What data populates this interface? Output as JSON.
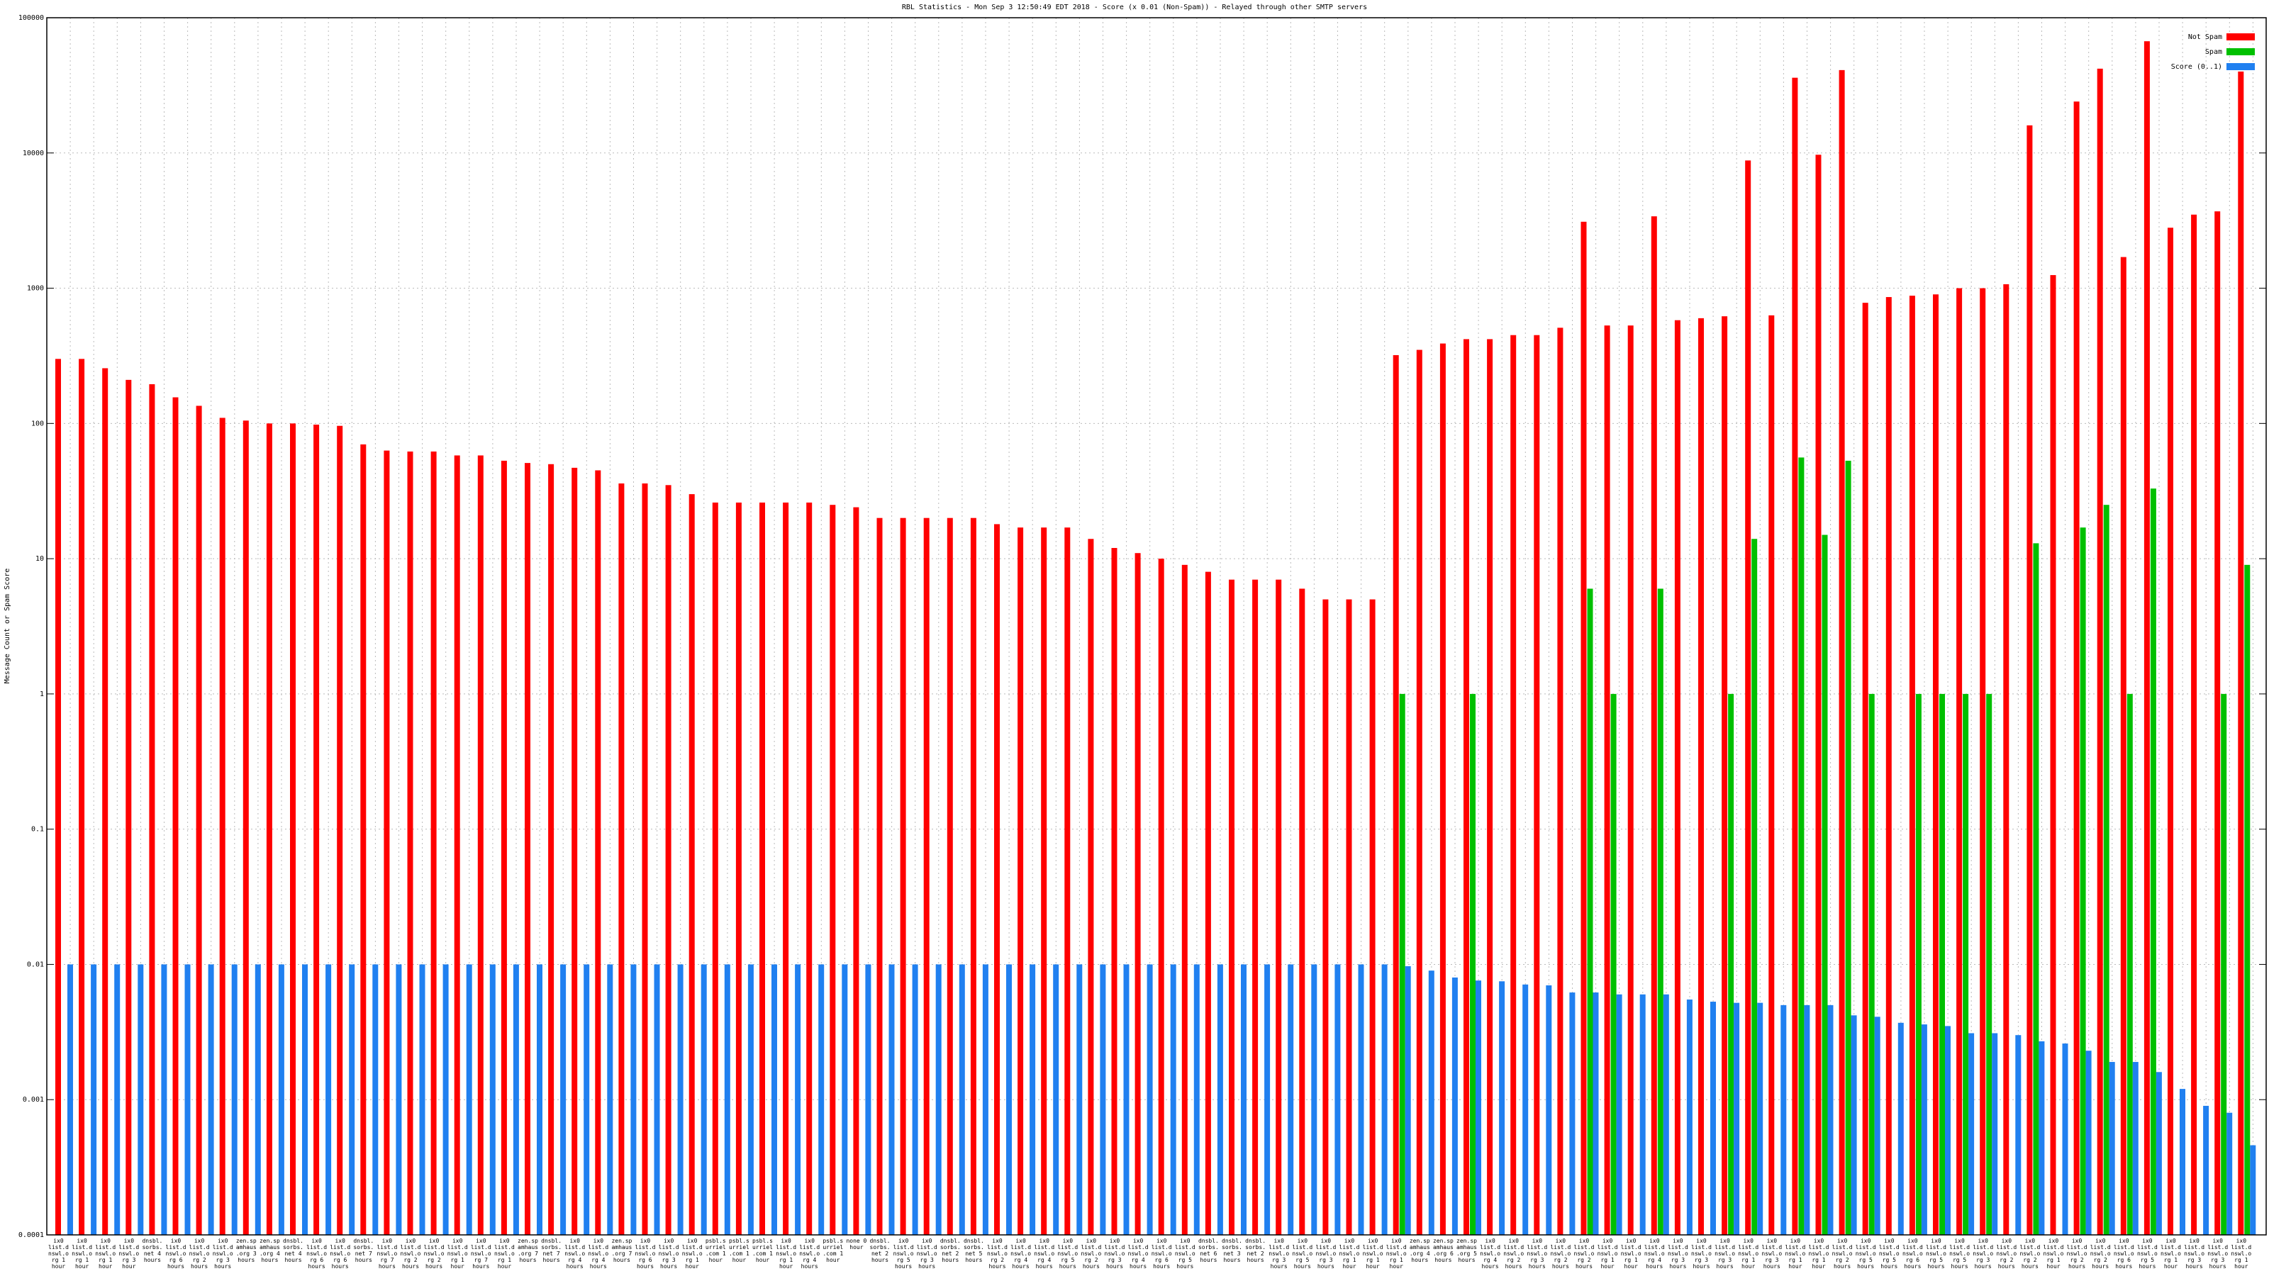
{
  "chart_data": {
    "type": "bar",
    "title": "RBL Statistics - Mon Sep  3 12:50:49 EDT 2018 - Score (x 0.01 (Non-Spam)) - Relayed through other SMTP servers",
    "ylabel": "Message Count or Spam Score",
    "log_scale": true,
    "grid": true,
    "legend": "upper right",
    "ylim": [
      0.0001,
      100000
    ],
    "yticks": [
      0.0001,
      0.001,
      0.01,
      0.1,
      1,
      10,
      100,
      1000,
      10000,
      100000
    ],
    "categories": [
      "ix0 list.dnswl.org 1 hour",
      "ix0 list.dnswl.org 1 hour",
      "ix0 list.dnswl.org 1 hour",
      "ix0 list.dnswl.org 3 hour",
      "dnsbl.sorbs.net 4 hours",
      "ix0 list.dnswl.org 6 hours",
      "ix0 list.dnswl.org 2 hours",
      "ix0 list.dnswl.org 3 hours",
      "zen.spamhaus.org 3 hours",
      "zen.spamhaus.org 4 hours",
      "dnsbl.sorbs.net 4 hours",
      "ix0 list.dnswl.org 6 hours",
      "ix0 list.dnswl.org 6 hours",
      "dnsbl.sorbs.net 7 hours",
      "ix0 list.dnswl.org 7 hours",
      "ix0 list.dnswl.org 2 hours",
      "ix0 list.dnswl.org 2 hours",
      "ix0 list.dnswl.org 1 hour",
      "ix0 list.dnswl.org 7 hours",
      "ix0 list.dnswl.org 1 hour",
      "zen.spamhaus.org 7 hours",
      "dnsbl.sorbs.net 7 hours",
      "ix0 list.dnswl.org 4 hours",
      "ix0 list.dnswl.org 4 hours",
      "zen.spamhaus.org 7 hours",
      "ix0 list.dnswl.org 6 hours",
      "ix0 list.dnswl.org 3 hours",
      "ix0 list.dnswl.org 1 hour",
      "psbl.surriel.com 1 hour",
      "psbl.surriel.com 1 hour",
      "psbl.surriel.com 1 hour",
      "ix0 list.dnswl.org 1 hour",
      "ix0 list.dnswl.org 4 hours",
      "psbl.surriel.com 1 hour",
      "none 0 hour",
      "dnsbl.sorbs.net 2 hours",
      "ix0 list.dnswl.org 5 hours",
      "ix0 list.dnswl.org 3 hours",
      "dnsbl.sorbs.net 2 hours",
      "dnsbl.sorbs.net 5 hours",
      "ix0 list.dnswl.org 2 hours",
      "ix0 list.dnswl.org 4 hours",
      "ix0 list.dnswl.org 4 hours",
      "ix0 list.dnswl.org 5 hours",
      "ix0 list.dnswl.org 2 hours",
      "ix0 list.dnswl.org 3 hours",
      "ix0 list.dnswl.org 4 hours",
      "ix0 list.dnswl.org 6 hours",
      "ix0 list.dnswl.org 5 hours",
      "dnsbl.sorbs.net 6 hours",
      "dnsbl.sorbs.net 3 hours",
      "dnsbl.sorbs.net 2 hours",
      "ix0 list.dnswl.org 3 hours",
      "ix0 list.dnswl.org 5 hours",
      "ix0 list.dnswl.org 3 hours",
      "ix0 list.dnswl.org 1 hour",
      "ix0 list.dnswl.org 1 hour",
      "ix0 list.dnswl.org 1 hour",
      "zen.spamhaus.org 4 hours",
      "zen.spamhaus.org 6 hours",
      "zen.spamhaus.org 5 hours",
      "ix0 list.dnswl.org 4 hours",
      "ix0 list.dnswl.org 2 hours",
      "ix0 list.dnswl.org 3 hours",
      "ix0 list.dnswl.org 2 hours",
      "ix0 list.dnswl.org 2 hours",
      "ix0 list.dnswl.org 1 hour",
      "ix0 list.dnswl.org 1 hour",
      "ix0 list.dnswl.org 4 hours",
      "ix0 list.dnswl.org 3 hours",
      "ix0 list.dnswl.org 3 hours",
      "ix0 list.dnswl.org 3 hours",
      "ix0 list.dnswl.org 1 hour",
      "ix0 list.dnswl.org 3 hours",
      "ix0 list.dnswl.org 1 hour",
      "ix0 list.dnswl.org 1 hour",
      "ix0 list.dnswl.org 2 hours",
      "ix0 list.dnswl.org 5 hours",
      "ix0 list.dnswl.org 5 hours",
      "ix0 list.dnswl.org 6 hours",
      "ix0 list.dnswl.org 5 hours",
      "ix0 list.dnswl.org 5 hours",
      "ix0 list.dnswl.org 3 hours",
      "ix0 list.dnswl.org 2 hours",
      "ix0 list.dnswl.org 2 hours",
      "ix0 list.dnswl.org 1 hour",
      "ix0 list.dnswl.org 2 hours",
      "ix0 list.dnswl.org 2 hours",
      "ix0 list.dnswl.org 6 hours",
      "ix0 list.dnswl.org 5 hours",
      "ix0 list.dnswl.org 1 hour",
      "ix0 list.dnswl.org 3 hours",
      "ix0 list.dnswl.org 3 hours",
      "ix0 list.dnswl.org 1 hour"
    ],
    "series": [
      {
        "name": "Not Spam",
        "color": "#ff0000",
        "values": [
          300,
          300,
          256,
          210,
          195,
          156,
          135,
          110,
          105,
          100,
          100,
          98,
          96,
          70,
          63,
          62,
          62,
          58,
          58,
          53,
          51,
          50,
          47,
          45,
          36,
          36,
          35,
          30,
          26,
          26,
          26,
          26,
          26,
          25,
          24,
          20,
          20,
          20,
          20,
          20,
          18,
          17,
          17,
          17,
          14,
          12,
          11,
          10,
          9,
          8,
          7,
          7,
          7,
          6,
          5,
          5,
          5,
          320,
          350,
          390,
          420,
          420,
          450,
          450,
          510,
          3100,
          530,
          530,
          3400,
          580,
          600,
          620,
          8800,
          630,
          36000,
          9700,
          41000,
          780,
          860,
          880,
          900,
          1000,
          1000,
          1070,
          16000,
          1250,
          24000,
          42000,
          1700,
          67000,
          2800,
          3500,
          3700,
          40000
        ]
      },
      {
        "name": "Spam",
        "color": "#00c000",
        "values": [
          null,
          null,
          null,
          null,
          null,
          null,
          null,
          null,
          null,
          null,
          null,
          null,
          null,
          null,
          null,
          null,
          null,
          null,
          null,
          null,
          null,
          null,
          null,
          null,
          null,
          null,
          null,
          null,
          null,
          null,
          null,
          null,
          null,
          null,
          null,
          null,
          null,
          null,
          null,
          null,
          null,
          null,
          null,
          null,
          null,
          null,
          null,
          null,
          null,
          null,
          null,
          null,
          null,
          null,
          null,
          null,
          null,
          1,
          null,
          null,
          1,
          null,
          null,
          null,
          null,
          6,
          1,
          null,
          6,
          null,
          null,
          1,
          14,
          null,
          56,
          15,
          53,
          1,
          null,
          1,
          1,
          1,
          1,
          null,
          13,
          null,
          17,
          25,
          1,
          33,
          null,
          null,
          1,
          9
        ]
      },
      {
        "name": "Score (0..1)",
        "color": "#2080f0",
        "values": [
          0.01,
          0.01,
          0.01,
          0.01,
          0.01,
          0.01,
          0.01,
          0.01,
          0.01,
          0.01,
          0.01,
          0.01,
          0.01,
          0.01,
          0.01,
          0.01,
          0.01,
          0.01,
          0.01,
          0.01,
          0.01,
          0.01,
          0.01,
          0.01,
          0.01,
          0.01,
          0.01,
          0.01,
          0.01,
          0.01,
          0.01,
          0.01,
          0.01,
          0.01,
          0.01,
          0.01,
          0.01,
          0.01,
          0.01,
          0.01,
          0.01,
          0.01,
          0.01,
          0.01,
          0.01,
          0.01,
          0.01,
          0.01,
          0.01,
          0.01,
          0.01,
          0.01,
          0.01,
          0.01,
          0.01,
          0.01,
          0.01,
          0.0097,
          0.009,
          0.008,
          0.0076,
          0.0075,
          0.0071,
          0.007,
          0.0062,
          0.0062,
          0.006,
          0.006,
          0.006,
          0.0055,
          0.0053,
          0.0052,
          0.0052,
          0.005,
          0.005,
          0.005,
          0.0042,
          0.0041,
          0.0037,
          0.0036,
          0.0035,
          0.0031,
          0.0031,
          0.003,
          0.0027,
          0.0026,
          0.0023,
          0.0019,
          0.0019,
          0.0016,
          0.0012,
          0.0009,
          0.0008,
          0.00046
        ]
      }
    ]
  }
}
